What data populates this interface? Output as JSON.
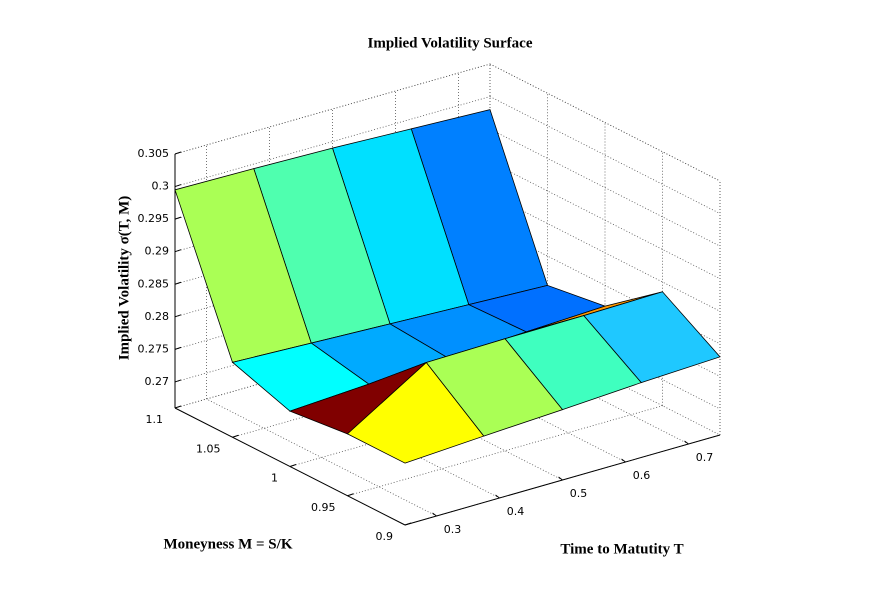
{
  "chart_data": {
    "type": "surface",
    "title": "Implied Volatility Surface",
    "xlabel": "Time to Matutity T",
    "ylabel": "Moneyness M = S/K",
    "zlabel": "Implied Volatility σ(T, M)",
    "x": [
      0.25,
      0.375,
      0.5,
      0.625,
      0.75
    ],
    "y": [
      0.9,
      0.95,
      1.0,
      1.05,
      1.1
    ],
    "z": [
      [
        0.2755,
        0.2762,
        0.2768,
        0.2775,
        0.278
      ],
      [
        0.2755,
        0.283,
        0.2832,
        0.2833,
        0.2835
      ],
      [
        0.2745,
        0.2752,
        0.2758,
        0.2763,
        0.2768
      ],
      [
        0.2775,
        0.277,
        0.2765,
        0.276,
        0.2755
      ],
      [
        0.2995,
        0.2993,
        0.299,
        0.2985,
        0.298
      ]
    ],
    "colors": [
      [
        "#ffff00",
        "#aaff55",
        "#3fffbf",
        "#1fc8ff"
      ],
      [
        "#800000",
        "#d40000",
        "#ff4000",
        "#ff9900"
      ],
      [
        "#00ffff",
        "#00aaff",
        "#0090ff",
        "#0070ff"
      ],
      [
        "#aaff55",
        "#4fffaf",
        "#00e0ff",
        "#0080ff"
      ]
    ],
    "xlim": [
      0.25,
      0.75
    ],
    "ylim": [
      0.9,
      1.1
    ],
    "zlim": [
      0.266,
      0.305
    ],
    "xticks": [
      0.3,
      0.4,
      0.5,
      0.6,
      0.7
    ],
    "yticks": [
      0.9,
      0.95,
      1,
      1.05,
      1.1
    ],
    "zticks": [
      0.27,
      0.275,
      0.28,
      0.285,
      0.29,
      0.295,
      0.3,
      0.305
    ],
    "grid": true
  }
}
